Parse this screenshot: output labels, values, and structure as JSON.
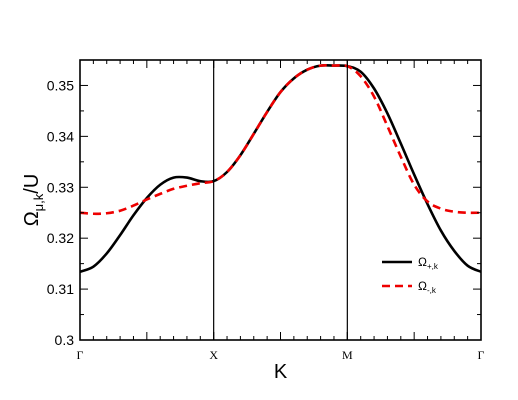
{
  "chart_data": {
    "type": "line",
    "xlabel": "K",
    "ylabel": {
      "main": "Ω",
      "sub": "μ,k",
      "tail": "/U"
    },
    "ylim": [
      0.3,
      0.355
    ],
    "yticks": [
      0.3,
      0.31,
      0.32,
      0.33,
      0.34,
      0.35
    ],
    "ytick_labels": [
      "0.3",
      "0.31",
      "0.32",
      "0.33",
      "0.34",
      "0.35"
    ],
    "categories": [
      "Γ",
      "X",
      "M",
      "Γ"
    ],
    "category_positions": [
      0,
      1,
      2,
      3
    ],
    "vertical_lines_at": [
      1,
      2
    ],
    "grid": false,
    "legend_position": "lower-right",
    "series": [
      {
        "name": {
          "main": "Ω",
          "sub": "+,k"
        },
        "color": "#000000",
        "style": "solid",
        "x": [
          0,
          0.1,
          0.2,
          0.3,
          0.4,
          0.5,
          0.6,
          0.7,
          0.8,
          0.9,
          1.0,
          1.1,
          1.2,
          1.3,
          1.4,
          1.5,
          1.6,
          1.7,
          1.8,
          1.9,
          2.0,
          2.1,
          2.2,
          2.3,
          2.4,
          2.5,
          2.6,
          2.7,
          2.8,
          2.9,
          3.0
        ],
        "y": [
          0.3134,
          0.3144,
          0.317,
          0.3206,
          0.3245,
          0.3279,
          0.3305,
          0.3319,
          0.3319,
          0.3312,
          0.3312,
          0.333,
          0.3363,
          0.3405,
          0.3448,
          0.3487,
          0.3514,
          0.3531,
          0.3539,
          0.3539,
          0.3538,
          0.3527,
          0.3494,
          0.3445,
          0.3386,
          0.3325,
          0.3267,
          0.3215,
          0.3175,
          0.3146,
          0.3134
        ]
      },
      {
        "name": {
          "main": "Ω",
          "sub": "-,k"
        },
        "color": "#ee0000",
        "style": "dashed",
        "x": [
          0,
          0.1,
          0.2,
          0.3,
          0.4,
          0.5,
          0.6,
          0.7,
          0.8,
          0.9,
          1.0,
          1.1,
          1.2,
          1.3,
          1.4,
          1.5,
          1.6,
          1.7,
          1.8,
          1.9,
          2.0,
          2.1,
          2.2,
          2.3,
          2.4,
          2.5,
          2.6,
          2.7,
          2.8,
          2.9,
          3.0
        ],
        "y": [
          0.325,
          0.3248,
          0.3249,
          0.3254,
          0.3264,
          0.3276,
          0.3287,
          0.3297,
          0.3303,
          0.3308,
          0.3312,
          0.333,
          0.3363,
          0.3405,
          0.3448,
          0.3487,
          0.3514,
          0.3531,
          0.3539,
          0.3539,
          0.3538,
          0.3518,
          0.3478,
          0.342,
          0.336,
          0.3305,
          0.3272,
          0.3258,
          0.3252,
          0.325,
          0.325
        ]
      }
    ]
  }
}
